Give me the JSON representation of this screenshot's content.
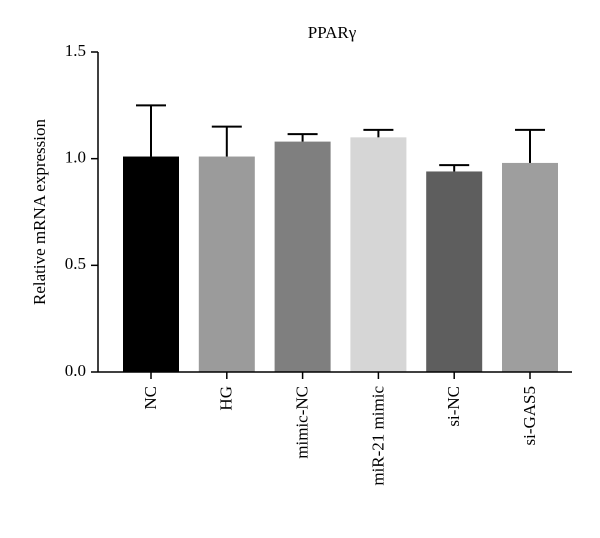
{
  "chart_data": {
    "type": "bar",
    "title": "PPARγ",
    "xlabel": "",
    "ylabel": "Relative mRNA expression",
    "ylim": [
      0,
      1.5
    ],
    "yticks": [
      "0.0",
      "0.5",
      "1.0",
      "1.5"
    ],
    "categories": [
      "NC",
      "HG",
      "mimic-NC",
      "miR-21 mimic",
      "si-NC",
      "si-GAS5"
    ],
    "values": [
      1.01,
      1.01,
      1.08,
      1.1,
      0.94,
      0.98
    ],
    "error_upper": [
      0.24,
      0.14,
      0.035,
      0.035,
      0.03,
      0.155
    ],
    "colors": [
      "#000000",
      "#9b9b9b",
      "#7f7f7f",
      "#d6d6d6",
      "#5e5e5e",
      "#9e9e9e"
    ],
    "grid": false,
    "legend": "none"
  }
}
